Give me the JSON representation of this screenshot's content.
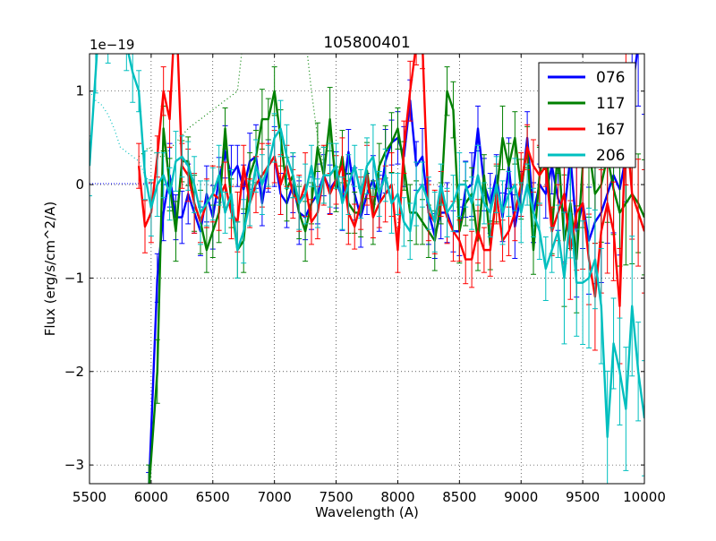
{
  "chart_data": {
    "type": "line",
    "title": "105800401",
    "xlabel": "Wavelength (A)",
    "ylabel": "Flux (erg/s/cm^2/A)",
    "offset_label": "1e−19",
    "xlim": [
      5500,
      10000
    ],
    "ylim": [
      -3.2,
      1.4
    ],
    "x_ticks": [
      5500,
      6000,
      6500,
      7000,
      7500,
      8000,
      8500,
      9000,
      9500,
      10000
    ],
    "y_ticks": [
      -3,
      -2,
      -1,
      0,
      1
    ],
    "y_tick_labels": [
      "−3",
      "−2",
      "−1",
      "0",
      "1"
    ],
    "grid": true,
    "legend_position": "top-right",
    "series": [
      {
        "name": "076",
        "color": "#0000ff",
        "x": [
          5980,
          6050,
          6100,
          6150,
          6200,
          6250,
          6300,
          6350,
          6400,
          6450,
          6500,
          6550,
          6600,
          6650,
          6700,
          6750,
          6800,
          6850,
          6900,
          6950,
          7000,
          7050,
          7100,
          7150,
          7200,
          7250,
          7300,
          7350,
          7400,
          7450,
          7500,
          7550,
          7600,
          7650,
          7700,
          7750,
          7800,
          7850,
          7900,
          7950,
          8000,
          8050,
          8100,
          8150,
          8200,
          8250,
          8300,
          8350,
          8400,
          8450,
          8500,
          8550,
          8600,
          8650,
          8700,
          8750,
          8800,
          8850,
          8900,
          8950,
          9000,
          9050,
          9100,
          9150,
          9200,
          9250,
          9300,
          9350,
          9400,
          9450,
          9500,
          9550,
          9600,
          9650,
          9700,
          9750,
          9800,
          9850,
          9900,
          9950,
          10000
        ],
        "y": [
          -3.3,
          -1.0,
          -0.3,
          0.1,
          -0.35,
          -0.35,
          -0.1,
          -0.3,
          -0.5,
          -0.1,
          -0.35,
          0.05,
          0.35,
          0.1,
          0.2,
          -0.05,
          0.25,
          0.3,
          -0.2,
          0.2,
          0.3,
          -0.1,
          -0.2,
          0.0,
          -0.3,
          -0.35,
          -0.2,
          -0.1,
          0.1,
          -0.05,
          0.05,
          -0.15,
          0.35,
          -0.1,
          -0.35,
          -0.1,
          0.05,
          -0.2,
          0.25,
          0.45,
          0.5,
          0.3,
          0.9,
          0.2,
          0.3,
          -0.3,
          -0.55,
          -0.3,
          -0.3,
          -0.5,
          -0.5,
          -0.05,
          0.0,
          0.6,
          0.0,
          -0.2,
          0.1,
          -0.35,
          0.2,
          -0.45,
          -0.1,
          0.5,
          -0.3,
          0.0,
          -0.1,
          0.2,
          -0.15,
          -0.3,
          0.3,
          -0.5,
          -0.2,
          -0.6,
          -0.4,
          -0.3,
          -0.1,
          0.1,
          -0.05,
          0.3,
          1.0,
          1.5,
          1.5
        ]
      },
      {
        "name": "117",
        "color": "#008000",
        "x": [
          5980,
          6050,
          6100,
          6150,
          6200,
          6250,
          6300,
          6350,
          6400,
          6450,
          6500,
          6550,
          6600,
          6650,
          6700,
          6750,
          6800,
          6850,
          6900,
          6950,
          7000,
          7050,
          7100,
          7150,
          7200,
          7250,
          7300,
          7350,
          7400,
          7450,
          7500,
          7550,
          7600,
          7650,
          7700,
          7750,
          7800,
          7850,
          7900,
          7950,
          8000,
          8050,
          8100,
          8150,
          8200,
          8250,
          8300,
          8350,
          8400,
          8450,
          8500,
          8550,
          8600,
          8650,
          8700,
          8750,
          8800,
          8850,
          8900,
          8950,
          9000,
          9050,
          9100,
          9150,
          9200,
          9250,
          9300,
          9350,
          9400,
          9450,
          9500,
          9550,
          9600,
          9650,
          9700,
          9750,
          9800,
          9850,
          9900,
          9950,
          10000
        ],
        "y": [
          -3.3,
          -2.0,
          0.6,
          0.0,
          -0.5,
          0.25,
          0.25,
          -0.2,
          -0.4,
          -0.7,
          -0.5,
          -0.3,
          0.6,
          -0.2,
          -0.7,
          -0.6,
          0.1,
          0.3,
          0.7,
          0.7,
          1.0,
          0.5,
          -0.05,
          0.1,
          -0.3,
          -0.5,
          -0.2,
          0.4,
          0.1,
          0.7,
          -0.05,
          0.3,
          -0.2,
          -0.3,
          -0.3,
          0.15,
          -0.3,
          0.2,
          0.35,
          0.45,
          0.6,
          0.2,
          -0.3,
          -0.3,
          -0.4,
          -0.5,
          -0.6,
          -0.2,
          1.0,
          0.8,
          -0.5,
          -0.2,
          -0.1,
          -0.6,
          0.1,
          -0.65,
          -0.1,
          0.5,
          0.2,
          0.5,
          -0.05,
          0.4,
          -0.7,
          0.1,
          0.5,
          -0.5,
          0.4,
          -0.6,
          -0.2,
          -0.8,
          0.2,
          0.4,
          -0.1,
          0.0,
          0.3,
          -0.05,
          -0.3,
          -0.2,
          -0.1,
          -0.2,
          -0.35
        ]
      },
      {
        "name": "167",
        "color": "#ff0000",
        "x": [
          5900,
          5950,
          6000,
          6050,
          6100,
          6150,
          6200,
          6250,
          6300,
          6350,
          6400,
          6450,
          6500,
          6550,
          6600,
          6650,
          6700,
          6750,
          6800,
          6850,
          6900,
          6950,
          7000,
          7050,
          7100,
          7150,
          7200,
          7250,
          7300,
          7350,
          7400,
          7450,
          7500,
          7550,
          7600,
          7650,
          7700,
          7750,
          7800,
          7850,
          7900,
          7950,
          8000,
          8050,
          8100,
          8150,
          8200,
          8250,
          8300,
          8350,
          8400,
          8450,
          8500,
          8550,
          8600,
          8650,
          8700,
          8750,
          8800,
          8850,
          8900,
          8950,
          9000,
          9050,
          9100,
          9150,
          9200,
          9250,
          9300,
          9350,
          9400,
          9450,
          9500,
          9550,
          9600,
          9650,
          9700,
          9750,
          9800,
          9850,
          9900,
          9950,
          10000
        ],
        "y": [
          0.2,
          -0.45,
          -0.3,
          0.3,
          1.0,
          0.7,
          2.0,
          0.2,
          0.1,
          -0.2,
          -0.4,
          -0.2,
          -0.1,
          -0.15,
          0.0,
          -0.3,
          -0.4,
          0.2,
          -0.2,
          0.0,
          0.1,
          0.2,
          0.3,
          0.0,
          0.2,
          -0.1,
          -0.2,
          0.0,
          -0.4,
          -0.3,
          0.1,
          -0.1,
          0.05,
          0.2,
          -0.3,
          -0.45,
          -0.2,
          0.1,
          -0.35,
          -0.2,
          -0.1,
          0.0,
          -0.7,
          0.4,
          1.0,
          1.5,
          1.5,
          -0.3,
          -0.4,
          -0.1,
          -0.35,
          -0.5,
          -0.6,
          -0.8,
          -0.8,
          -0.5,
          -0.7,
          -0.7,
          -0.1,
          -0.6,
          -0.5,
          -0.3,
          0.0,
          0.4,
          0.2,
          0.1,
          0.2,
          -0.5,
          -0.3,
          -0.1,
          -0.7,
          -0.3,
          -0.2,
          -0.8,
          -1.2,
          -0.5,
          -0.2,
          -0.5,
          -1.3,
          0.7,
          -0.1,
          -0.3,
          -0.5
        ]
      },
      {
        "name": "206",
        "color": "#00bfbf",
        "x": [
          5500,
          5550,
          5600,
          5650,
          5700,
          5750,
          5800,
          5850,
          5900,
          5950,
          6000,
          6050,
          6100,
          6150,
          6200,
          6250,
          6300,
          6350,
          6400,
          6450,
          6500,
          6550,
          6600,
          6650,
          6700,
          6750,
          6800,
          6850,
          6900,
          6950,
          7000,
          7050,
          7100,
          7150,
          7200,
          7250,
          7300,
          7350,
          7400,
          7450,
          7500,
          7550,
          7600,
          7650,
          7700,
          7750,
          7800,
          7850,
          7900,
          7950,
          8000,
          8050,
          8100,
          8150,
          8200,
          8250,
          8300,
          8350,
          8400,
          8450,
          8500,
          8550,
          8600,
          8650,
          8700,
          8750,
          8800,
          8850,
          8900,
          8950,
          9000,
          9050,
          9100,
          9150,
          9200,
          9250,
          9300,
          9350,
          9400,
          9450,
          9500,
          9550,
          9600,
          9650,
          9700,
          9750,
          9800,
          9850,
          9900,
          9950,
          10000
        ],
        "y": [
          0.2,
          1.2,
          2.2,
          1.6,
          2.3,
          1.7,
          1.5,
          1.2,
          1.0,
          0.1,
          -0.25,
          0.0,
          0.1,
          -0.1,
          0.25,
          0.3,
          0.2,
          0.0,
          -0.3,
          -0.2,
          -0.1,
          0.1,
          -0.3,
          -0.1,
          -0.7,
          -0.5,
          -0.2,
          0.2,
          0.0,
          0.2,
          0.5,
          0.6,
          0.3,
          0.1,
          -0.2,
          -0.1,
          0.2,
          -0.2,
          0.1,
          0.1,
          0.2,
          -0.2,
          0.0,
          0.2,
          -0.1,
          0.2,
          0.3,
          -0.1,
          0.1,
          -0.2,
          -0.1,
          -0.4,
          -0.5,
          -0.1,
          0.0,
          -0.2,
          -0.4,
          0.0,
          -0.3,
          -0.2,
          0.0,
          0.0,
          -0.2,
          0.1,
          -0.2,
          -0.3,
          0.0,
          -0.3,
          -0.1,
          0.0,
          -0.3,
          0.0,
          -0.3,
          -0.5,
          -0.9,
          -0.7,
          -0.5,
          -1.0,
          -0.3,
          -1.05,
          -1.05,
          -1.0,
          -0.8,
          -1.3,
          -2.7,
          -1.7,
          -2.0,
          -2.4,
          -1.3,
          -2.0,
          -2.5
        ]
      }
    ],
    "dotted_series": [
      {
        "color": "#008000",
        "x": [
          5900,
          5940,
          5980,
          6020,
          6060,
          6100,
          6300,
          6500,
          6700,
          6750,
          6800,
          7000,
          7200,
          7250,
          7300,
          7350,
          7400
        ],
        "y": [
          0.3,
          0.35,
          0.4,
          0.35,
          0.3,
          0.3,
          0.6,
          0.8,
          1.0,
          1.6,
          2.0,
          2.0,
          1.8,
          1.6,
          1.0,
          0.5,
          0.2
        ]
      },
      {
        "color": "#00bfbf",
        "x": [
          5500,
          5550,
          5600,
          5650,
          5700,
          5750,
          5800,
          5850,
          5900,
          5950,
          6000
        ],
        "y": [
          1.0,
          0.9,
          0.85,
          0.75,
          0.6,
          0.4,
          0.35,
          0.3,
          0.25,
          0.1,
          0.0
        ]
      }
    ]
  }
}
